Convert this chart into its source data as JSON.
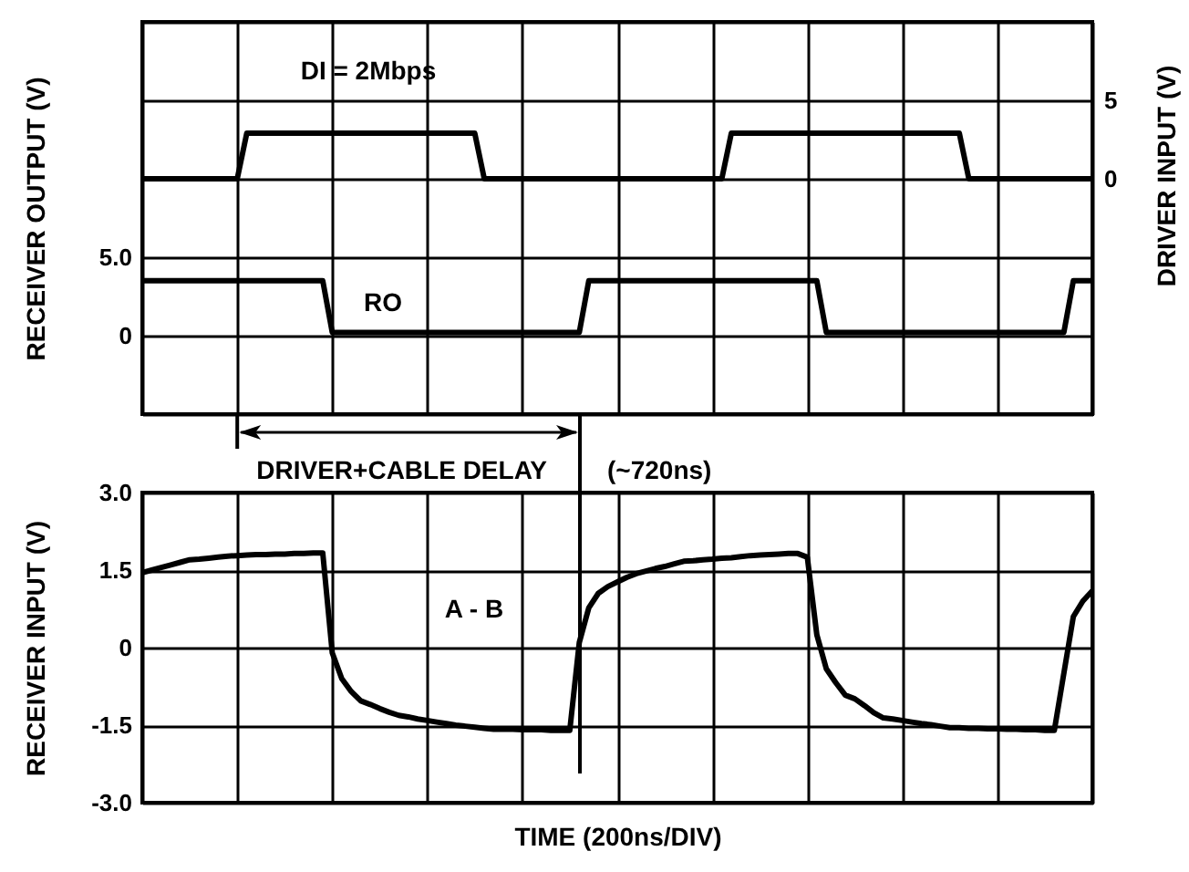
{
  "chart_data": [
    {
      "type": "line",
      "ylabel": "RECEIVER OUTPUT (V)",
      "y2label": "DRIVER INPUT (V)",
      "categories": [
        null,
        null,
        null,
        null,
        null,
        null,
        null,
        null,
        null,
        null,
        null,
        null,
        null,
        null,
        null,
        null,
        null,
        null,
        null,
        null,
        null,
        null,
        null,
        null,
        null,
        null,
        null,
        null,
        null,
        null,
        null,
        null,
        null,
        null,
        null,
        null,
        null,
        null,
        null,
        null,
        null,
        null,
        null,
        null,
        null,
        null,
        null,
        null,
        null,
        null,
        null,
        null,
        null,
        null,
        null,
        null,
        null,
        null,
        null,
        null,
        null,
        null,
        null,
        null,
        null,
        null,
        null,
        null,
        null,
        null,
        null,
        null,
        null,
        null,
        null,
        null,
        null,
        null,
        null,
        null,
        null,
        null,
        null,
        null,
        null,
        null,
        null,
        null,
        null,
        null,
        null,
        null,
        null,
        null,
        null,
        null,
        null,
        null,
        null,
        null,
        null
      ],
      "ylim": [
        -5,
        20
      ],
      "yticks": [
        {
          "value": -5,
          "label": null
        },
        0,
        {
          "value": 5,
          "label": "5.0"
        },
        {
          "value": 10,
          "label": null
        },
        {
          "value": 15,
          "label": null
        },
        {
          "value": 20,
          "label": null
        }
      ],
      "y2lim": [
        -15,
        10
      ],
      "y2ticks": [
        0,
        5
      ],
      "grid": true,
      "series": [
        {
          "color": "#000000",
          "axis": "y2",
          "values": [
            0,
            0,
            0,
            0,
            0,
            0,
            0,
            0,
            0,
            0,
            0,
            2.9,
            2.9,
            2.9,
            2.9,
            2.9,
            2.9,
            2.9,
            2.9,
            2.9,
            2.9,
            2.9,
            2.9,
            2.9,
            2.9,
            2.9,
            2.9,
            2.9,
            2.9,
            2.9,
            2.9,
            2.9,
            2.9,
            2.9,
            2.9,
            2.9,
            0,
            0,
            0,
            0,
            0,
            0,
            0,
            0,
            0,
            0,
            0,
            0,
            0,
            0,
            0,
            0,
            0,
            0,
            0,
            0,
            0,
            0,
            0,
            0,
            0,
            0,
            2.9,
            2.9,
            2.9,
            2.9,
            2.9,
            2.9,
            2.9,
            2.9,
            2.9,
            2.9,
            2.9,
            2.9,
            2.9,
            2.9,
            2.9,
            2.9,
            2.9,
            2.9,
            2.9,
            2.9,
            2.9,
            2.9,
            2.9,
            2.9,
            2.9,
            0,
            0,
            0,
            0,
            0,
            0,
            0,
            0,
            0,
            0,
            0,
            0,
            0,
            0
          ]
        },
        {
          "color": "#000000",
          "values": [
            3.5,
            3.5,
            3.5,
            3.5,
            3.5,
            3.5,
            3.5,
            3.5,
            3.5,
            3.5,
            3.5,
            3.5,
            3.5,
            3.5,
            3.5,
            3.5,
            3.5,
            3.5,
            3.5,
            3.5,
            0.2,
            0.2,
            0.2,
            0.2,
            0.2,
            0.2,
            0.2,
            0.2,
            0.2,
            0.2,
            0.2,
            0.2,
            0.2,
            0.2,
            0.2,
            0.2,
            0.2,
            0.2,
            0.2,
            0.2,
            0.2,
            0.2,
            0.2,
            0.2,
            0.2,
            0.2,
            0.2,
            3.5,
            3.5,
            3.5,
            3.5,
            3.5,
            3.5,
            3.5,
            3.5,
            3.5,
            3.5,
            3.5,
            3.5,
            3.5,
            3.5,
            3.5,
            3.5,
            3.5,
            3.5,
            3.5,
            3.5,
            3.5,
            3.5,
            3.5,
            3.5,
            3.5,
            0.2,
            0.2,
            0.2,
            0.2,
            0.2,
            0.2,
            0.2,
            0.2,
            0.2,
            0.2,
            0.2,
            0.2,
            0.2,
            0.2,
            0.2,
            0.2,
            0.2,
            0.2,
            0.2,
            0.2,
            0.2,
            0.2,
            0.2,
            0.2,
            0.2,
            0.2,
            3.5,
            3.5,
            3.5
          ]
        }
      ],
      "annotations": [
        "DI = 2Mbps",
        "RO"
      ]
    },
    {
      "type": "line",
      "ylabel": "RECEIVER INPUT (V)",
      "xlabel": "TIME (200ns/DIV)",
      "categories": [
        null,
        null,
        null,
        null,
        null,
        null,
        null,
        null,
        null,
        null,
        null,
        null,
        null,
        null,
        null,
        null,
        null,
        null,
        null,
        null,
        null,
        null,
        null,
        null,
        null,
        null,
        null,
        null,
        null,
        null,
        null,
        null,
        null,
        null,
        null,
        null,
        null,
        null,
        null,
        null,
        null,
        null,
        null,
        null,
        null,
        null,
        null,
        null,
        null,
        null,
        null,
        null,
        null,
        null,
        null,
        null,
        null,
        null,
        null,
        null,
        null,
        null,
        null,
        null,
        null,
        null,
        null,
        null,
        null,
        null,
        null,
        null,
        null,
        null,
        null,
        null,
        null,
        null,
        null,
        null,
        null,
        null,
        null,
        null,
        null,
        null,
        null,
        null,
        null,
        null,
        null,
        null,
        null,
        null,
        null,
        null,
        null,
        null,
        null,
        null,
        null
      ],
      "ylim": [
        -3,
        3
      ],
      "yticks": [
        {
          "value": -3,
          "label": "-3.0"
        },
        -1.5,
        0,
        1.5,
        {
          "value": 3,
          "label": "3.0"
        }
      ],
      "grid": true,
      "series": [
        {
          "color": "#000000",
          "values": [
            1.45,
            1.5,
            1.55,
            1.6,
            1.65,
            1.7,
            1.71,
            1.73,
            1.75,
            1.77,
            1.78,
            1.79,
            1.8,
            1.8,
            1.81,
            1.81,
            1.82,
            1.82,
            1.83,
            1.83,
            -0.1,
            -0.6,
            -0.85,
            -1.03,
            -1.1,
            -1.18,
            -1.25,
            -1.31,
            -1.34,
            -1.38,
            -1.41,
            -1.44,
            -1.47,
            -1.5,
            -1.52,
            -1.54,
            -1.56,
            -1.58,
            -1.58,
            -1.58,
            -1.59,
            -1.59,
            -1.59,
            -1.6,
            -1.6,
            -1.6,
            0.1,
            0.77,
            1.05,
            1.18,
            1.27,
            1.36,
            1.43,
            1.48,
            1.53,
            1.57,
            1.62,
            1.67,
            1.68,
            1.7,
            1.71,
            1.73,
            1.74,
            1.76,
            1.78,
            1.79,
            1.8,
            1.81,
            1.82,
            1.82,
            1.75,
            0.25,
            -0.41,
            -0.68,
            -0.92,
            -0.99,
            -1.12,
            -1.26,
            -1.36,
            -1.38,
            -1.41,
            -1.44,
            -1.47,
            -1.49,
            -1.52,
            -1.55,
            -1.55,
            -1.56,
            -1.56,
            -1.57,
            -1.57,
            -1.58,
            -1.58,
            -1.59,
            -1.59,
            -1.6,
            -1.6,
            -0.5,
            0.6,
            0.9,
            1.1
          ]
        }
      ],
      "annotations": [
        "A - B",
        "DRIVER+CABLE DELAY",
        "(~720ns)"
      ]
    }
  ]
}
